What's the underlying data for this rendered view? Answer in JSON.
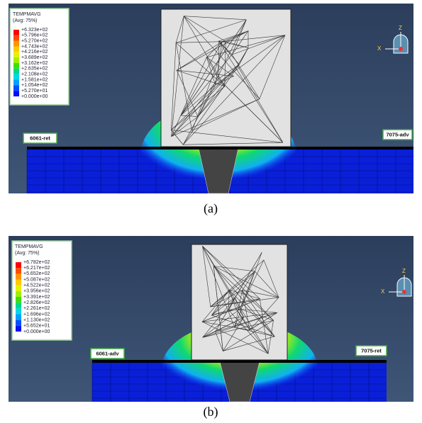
{
  "panels": [
    {
      "legend": {
        "title": "TEMPMAVG",
        "subtitle": "(Avg: 75%)",
        "labels": [
          "+6.323e+02",
          "+5.796e+02",
          "+5.270e+02",
          "+4.743e+02",
          "+4.216e+02",
          "+3.689e+02",
          "+3.162e+02",
          "+2.635e+02",
          "+2.108e+02",
          "+1.581e+02",
          "+1.054e+02",
          "+5.270e+01",
          "+0.000e+00"
        ]
      },
      "left_label": "6061-ret",
      "right_label": "7075-adv",
      "triad": {
        "z": "Z",
        "x": "X"
      },
      "caption": "(a)"
    },
    {
      "legend": {
        "title": "TEMPMAVG",
        "subtitle": "(Avg: 75%)",
        "labels": [
          "+6.782e+02",
          "+6.217e+02",
          "+5.652e+02",
          "+5.087e+02",
          "+4.522e+02",
          "+3.956e+02",
          "+3.391e+02",
          "+2.826e+02",
          "+2.261e+02",
          "+1.696e+02",
          "+1.130e+02",
          "+5.652e+01",
          "+0.000e+00"
        ]
      },
      "left_label": "6061-adv",
      "right_label": "7075-ret",
      "triad": {
        "z": "Z",
        "x": "X"
      },
      "caption": "(b)"
    }
  ]
}
